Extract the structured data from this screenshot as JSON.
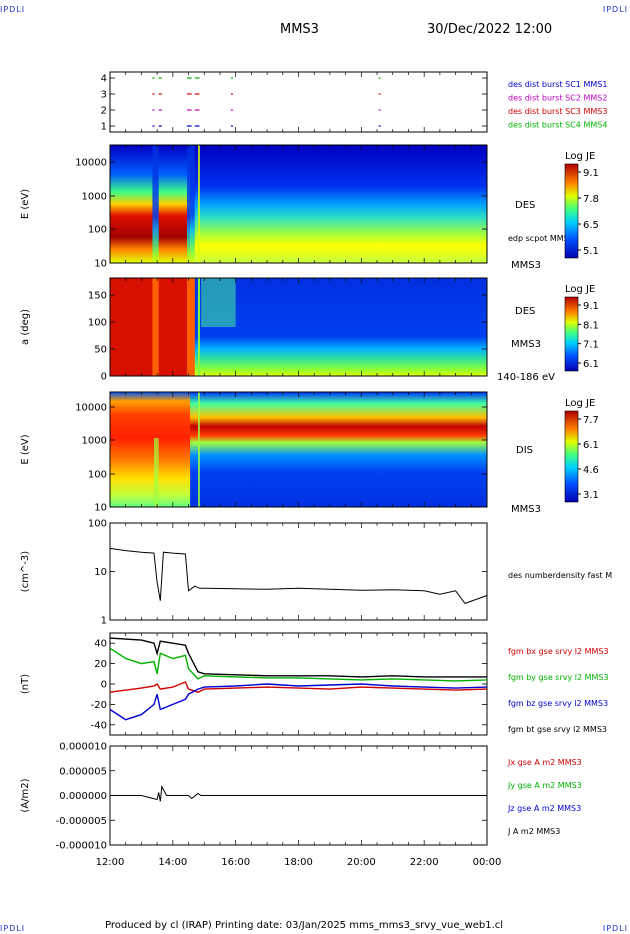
{
  "corners": {
    "tl": "IPDLI",
    "tr": "IPDLI",
    "bl": "IPDLI",
    "br": "IPDLI"
  },
  "header": {
    "spacecraft": "MMS3",
    "date": "30/Dec/2022 12:00"
  },
  "footer": "Produced by cl (IRAP)    Printing date: 03/Jan/2025    mms_mms3_srvy_vue_web1.cl",
  "colors": {
    "mms1": "#0000d0",
    "mms2": "#c000c0",
    "mms3": "#d00000",
    "mms4": "#00b000",
    "black": "#000000"
  },
  "chart_data": [
    {
      "type": "line",
      "panel": "burst",
      "yticks": [
        "1",
        "2",
        "3",
        "4"
      ],
      "legend": [
        {
          "label": "des dist burst SC1 MMS1",
          "color": "#0000d0"
        },
        {
          "label": "des dist burst SC2 MMS2",
          "color": "#c000c0"
        },
        {
          "label": "des dist burst SC3 MMS3",
          "color": "#d00000"
        },
        {
          "label": "des dist burst SC4 MMS4",
          "color": "#00b000"
        }
      ],
      "intervals_hours": [
        [
          13.35,
          13.42
        ],
        [
          13.55,
          13.65
        ],
        [
          14.45,
          14.6
        ],
        [
          14.7,
          14.85
        ],
        [
          15.85,
          15.87
        ],
        [
          20.55,
          20.6
        ]
      ]
    },
    {
      "type": "heatmap",
      "panel": "des-energy",
      "ylabel": "E (eV)",
      "yticks": [
        "10",
        "100",
        "1000",
        "10000"
      ],
      "side_label": "DES",
      "extra_label": "edp scpot MMS3",
      "sc_label": "MMS3",
      "colorbar": {
        "title": "Log JE",
        "ticks": [
          "9.1",
          "7.8",
          "6.5",
          "5.1"
        ]
      }
    },
    {
      "type": "heatmap",
      "panel": "des-pitch",
      "ylabel": "a (deg)",
      "yticks": [
        "0",
        "50",
        "100",
        "150"
      ],
      "side_label": "DES",
      "sc_label": "MMS3",
      "extra_label": "140-186 eV",
      "colorbar": {
        "title": "Log JE",
        "ticks": [
          "9.1",
          "8.1",
          "7.1",
          "6.1"
        ]
      }
    },
    {
      "type": "heatmap",
      "panel": "dis-energy",
      "ylabel": "E (eV)",
      "yticks": [
        "10",
        "100",
        "1000",
        "10000"
      ],
      "side_label": "DIS",
      "sc_label": "MMS3",
      "colorbar": {
        "title": "Log JE",
        "ticks": [
          "7.7",
          "6.1",
          "4.6",
          "3.1"
        ]
      }
    },
    {
      "type": "line",
      "panel": "density",
      "ylabel": "(cm^-3)",
      "yticks": [
        "1",
        "10",
        "100"
      ],
      "legend": [
        {
          "label": "des numberdensity fast M",
          "color": "#000000"
        }
      ],
      "x": [
        12.0,
        12.5,
        13.0,
        13.4,
        13.5,
        13.6,
        13.7,
        14.0,
        14.4,
        14.5,
        14.7,
        14.85,
        15.0,
        16.0,
        17.0,
        18.0,
        19.0,
        20.0,
        21.0,
        22.0,
        22.5,
        23.0,
        23.3,
        24.0
      ],
      "y": [
        30,
        27,
        25,
        24,
        6,
        2.5,
        25,
        24,
        23,
        4,
        5,
        4.5,
        4.5,
        4.4,
        4.3,
        4.5,
        4.3,
        4.1,
        4.2,
        4.0,
        3.4,
        4.0,
        2.2,
        3.2
      ]
    },
    {
      "type": "line",
      "panel": "magnetic",
      "ylabel": "(nT)",
      "yticks": [
        "-40",
        "-20",
        "0",
        "20",
        "40"
      ],
      "legend": [
        {
          "label": "fgm bx gse srvy l2 MMS3",
          "color": "#d00000"
        },
        {
          "label": "fgm by gse srvy l2 MMS3",
          "color": "#00b000"
        },
        {
          "label": "fgm bz gse srvy l2 MMS3",
          "color": "#0000d0"
        },
        {
          "label": "fgm bt gse srvy l2 MMS3",
          "color": "#000000"
        }
      ],
      "x": [
        12.0,
        12.5,
        13.0,
        13.4,
        13.5,
        13.6,
        14.0,
        14.4,
        14.5,
        14.8,
        15.0,
        16.0,
        17.0,
        18.0,
        19.0,
        20.0,
        21.0,
        22.0,
        23.0,
        24.0
      ],
      "series": [
        {
          "name": "bx",
          "color": "#d00000",
          "values": [
            -8,
            -6,
            -4,
            -2,
            0,
            -5,
            -3,
            2,
            -5,
            -8,
            -5,
            -4,
            -3,
            -4,
            -5,
            -3,
            -4,
            -5,
            -6,
            -5
          ]
        },
        {
          "name": "by",
          "color": "#00b000",
          "values": [
            35,
            25,
            20,
            22,
            10,
            30,
            25,
            28,
            15,
            5,
            8,
            7,
            6,
            6,
            5,
            4,
            5,
            4,
            3,
            4
          ]
        },
        {
          "name": "bz",
          "color": "#0000d0",
          "values": [
            -25,
            -35,
            -30,
            -20,
            -10,
            -25,
            -20,
            -15,
            -10,
            -5,
            -3,
            -2,
            0,
            -2,
            -1,
            0,
            -2,
            -3,
            -4,
            -3
          ]
        },
        {
          "name": "bt",
          "color": "#000000",
          "values": [
            45,
            44,
            43,
            40,
            30,
            42,
            40,
            38,
            30,
            12,
            10,
            9,
            8,
            8,
            8,
            7,
            8,
            7,
            7,
            7
          ]
        }
      ]
    },
    {
      "type": "line",
      "panel": "current",
      "ylabel": "(A/m2)",
      "yticks": [
        "-0.000010",
        "-0.000005",
        "0.000000",
        "0.000005",
        "0.000010"
      ],
      "xticks": [
        "12:00",
        "14:00",
        "16:00",
        "18:00",
        "20:00",
        "22:00",
        "00:00"
      ],
      "legend": [
        {
          "label": "Jx gse A m2 MMS3",
          "color": "#d00000"
        },
        {
          "label": "Jy gse A m2 MMS3",
          "color": "#00b000"
        },
        {
          "label": "Jz gse A m2 MMS3",
          "color": "#0000d0"
        },
        {
          "label": "J A m2 MMS3",
          "color": "#000000"
        }
      ],
      "x": [
        12.0,
        13.0,
        13.5,
        13.55,
        13.6,
        13.65,
        13.8,
        14.5,
        14.6,
        14.8,
        14.9,
        16.0,
        20.0,
        24.0
      ],
      "y": [
        0.0,
        0.0,
        -8e-07,
        6e-07,
        -1.2e-06,
        1.8e-06,
        0.0,
        0.0,
        -6e-07,
        4e-07,
        0.0,
        0.0,
        0.0,
        0.0
      ]
    }
  ]
}
